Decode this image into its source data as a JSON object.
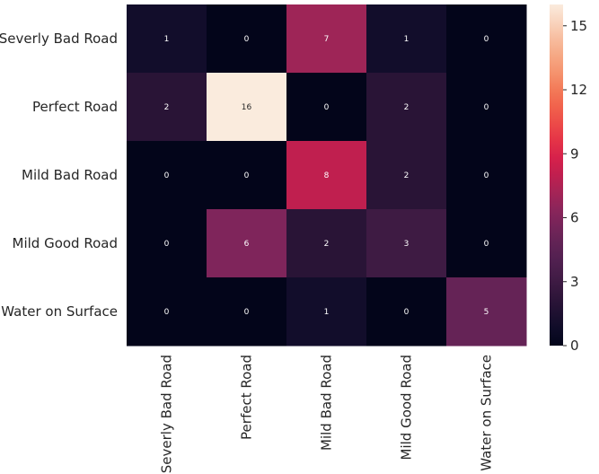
{
  "chart_data": {
    "type": "heatmap",
    "title": "",
    "xlabel": "",
    "ylabel": "",
    "x_categories": [
      "Severly Bad Road",
      "Perfect Road",
      "Mild Bad Road",
      "Mild Good Road",
      "Water on Surface"
    ],
    "y_categories": [
      "Severly Bad Road",
      "Perfect Road",
      "Mild Bad Road",
      "Mild Good Road",
      "Water on Surface"
    ],
    "values": [
      [
        1,
        0,
        7,
        1,
        0
      ],
      [
        2,
        16,
        0,
        2,
        0
      ],
      [
        0,
        0,
        8,
        2,
        0
      ],
      [
        0,
        6,
        2,
        3,
        0
      ],
      [
        0,
        0,
        1,
        0,
        5
      ]
    ],
    "colorbar": {
      "range": [
        0,
        16
      ],
      "ticks": [
        "0",
        "3",
        "6",
        "9",
        "12",
        "15"
      ],
      "colormap": "rocket"
    },
    "annotations": true,
    "grid": false
  }
}
